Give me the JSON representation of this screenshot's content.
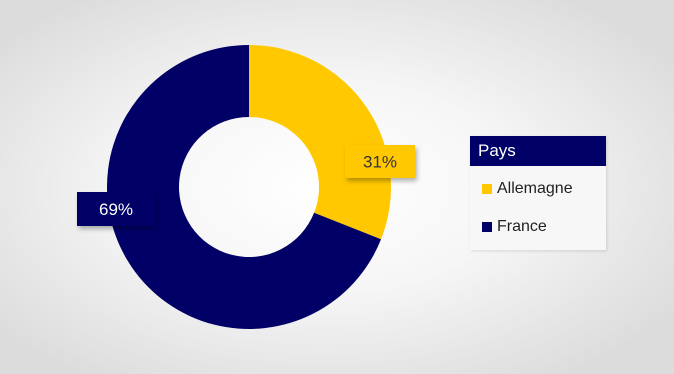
{
  "chart_data": {
    "type": "pie",
    "variant": "donut",
    "legend_title": "Pays",
    "legend_position": "right",
    "slices": [
      {
        "name": "Allemagne",
        "value": 31,
        "label": "31%",
        "color": "#FFC800"
      },
      {
        "name": "France",
        "value": 69,
        "label": "69%",
        "color": "#010066"
      }
    ]
  }
}
